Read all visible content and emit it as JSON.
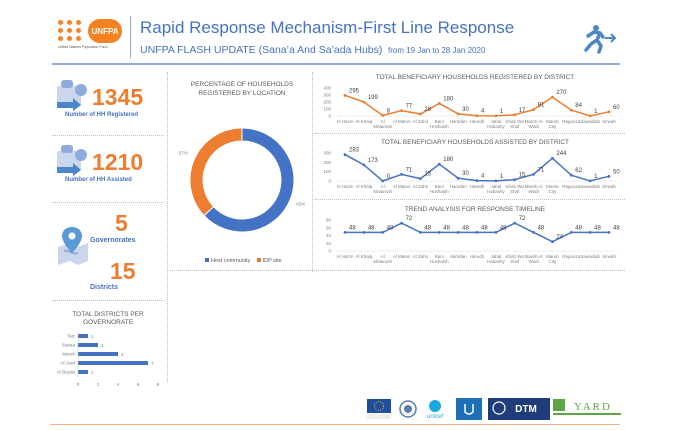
{
  "header": {
    "logo_text": "UNFPA",
    "logo_caption": "United Nations Population Fund",
    "title": "Rapid Response Mechanism-First Line Response",
    "subtitle": "UNFPA FLASH UPDATE (Sana’a And Sa’ada Hubs)",
    "date_range": "from 19 Jan to 28 Jan 2020",
    "icon": "runner-exit-icon"
  },
  "kpis": {
    "registered": {
      "value": "1345",
      "label": "Number of HH Registered"
    },
    "assisted": {
      "value": "1210",
      "label": "Number of HH Assisted"
    },
    "governorates": {
      "value": "5",
      "label": "Governorates"
    },
    "districts": {
      "value": "15",
      "label": "Districts"
    }
  },
  "colors": {
    "blue": "#4472c4",
    "orange": "#ed7d31"
  },
  "chart_data": [
    {
      "id": "districts_per_governorate",
      "type": "bar",
      "orientation": "horizontal",
      "title": "TOTAL DISTRICTS PER GOVERNORATE",
      "categories": [
        "Taiz",
        "Sanaa",
        "Mareb",
        "Al Jowf",
        "Al Beyda"
      ],
      "values": [
        1,
        2,
        4,
        7,
        1
      ],
      "xlim": [
        0,
        8
      ],
      "xticks": [
        "0",
        "2",
        "4",
        "6",
        "8"
      ],
      "color": "#4472c4"
    },
    {
      "id": "households_by_location",
      "type": "pie",
      "donut": true,
      "title": "PERCENTAGE OF HOUSEHOLDS REGISTERED BY LOCATION",
      "categories": [
        "Host community",
        "IDP site"
      ],
      "values": [
        63,
        37
      ],
      "labels": [
        "63%",
        "37%"
      ],
      "colors": [
        "#4472c4",
        "#ed7d31"
      ],
      "legend": "bottom"
    },
    {
      "id": "registered_by_district",
      "type": "line",
      "title": "TOTAL BENEFICIARY HOUSEHOLDS REGISTERED BY DISTRICT",
      "categories": [
        "Al Hazm",
        "Al Khalq",
        "Al Matamah",
        "Al Maton",
        "Al Zahir",
        "Bani Hushaish",
        "Hamdan",
        "Haredh",
        "Jabal Habashy",
        "Khab Wa Shaf",
        "Mareb Al Wadi",
        "Mareb City",
        "Ragouza",
        "Sawadiah",
        "Sirwah"
      ],
      "values": [
        295,
        199,
        8,
        77,
        28,
        180,
        30,
        4,
        1,
        17,
        91,
        270,
        84,
        1,
        60
      ],
      "ylim": [
        0,
        400
      ],
      "yticks": [
        "0",
        "100",
        "200",
        "300",
        "400"
      ],
      "color": "#ed7d31"
    },
    {
      "id": "assisted_by_district",
      "type": "line",
      "title": "TOTAL BENEFICIARY HOUSEHOLDS ASSISTED BY DISTRICT",
      "categories": [
        "Al Hazm",
        "Al Khalq",
        "Al Matamah",
        "Al Maton",
        "Al Zahir",
        "Bani Hushaish",
        "Hamdan",
        "Haredh",
        "Jabal Habashy",
        "Khab Wa Shaf",
        "Mareb Al Wadi",
        "Mareb City",
        "Ragouza",
        "Sawadiah",
        "Sirwah"
      ],
      "values": [
        283,
        173,
        0,
        71,
        25,
        180,
        30,
        4,
        1,
        15,
        71,
        244,
        62,
        1,
        50
      ],
      "ylim": [
        0,
        300
      ],
      "yticks": [
        "0",
        "100",
        "200",
        "300"
      ],
      "color": "#4472c4"
    },
    {
      "id": "response_timeline",
      "type": "line",
      "title": "TREND ANALYSIS FOR RESPONSE TIMELINE",
      "categories": [
        "Al Hazm",
        "Al Khalq",
        "Al Matamah",
        "Al Maton",
        "Al Zahir",
        "Bani Hushaish",
        "Hamdan",
        "Haredh",
        "Jabal Habashy",
        "Khab Wa Shaf",
        "Mareb Al Wadi",
        "Mareb City",
        "Ragouza",
        "Sawadiah",
        "Sirwah"
      ],
      "values": [
        48,
        48,
        48,
        72,
        48,
        48,
        48,
        48,
        48,
        72,
        48,
        24,
        48,
        48,
        48
      ],
      "ylim": [
        0,
        80
      ],
      "yticks": [
        "0",
        "20",
        "40",
        "60",
        "80"
      ],
      "color": "#4472c4"
    }
  ],
  "partner_logos": [
    "European Union",
    "WFP",
    "unicef",
    "Islamic Relief",
    "DTM",
    "YARD"
  ]
}
